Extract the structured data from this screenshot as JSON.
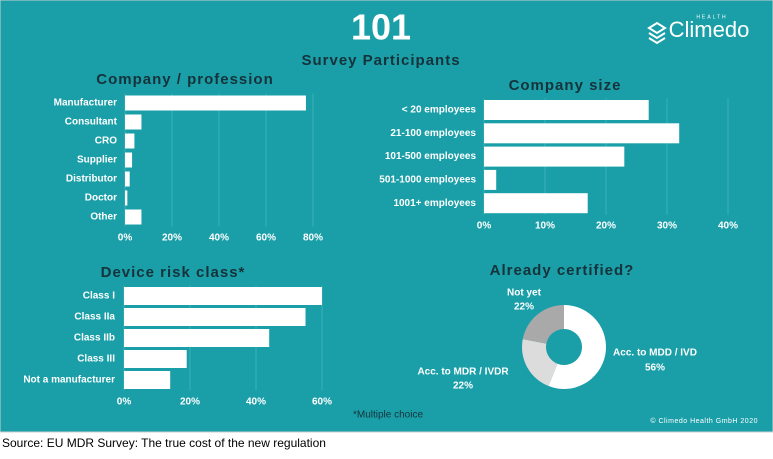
{
  "header": {
    "participants": 101,
    "subtitle": "Survey Participants"
  },
  "logo": {
    "name": "Climedo",
    "tagline": "HEALTH"
  },
  "note": "*Multiple choice",
  "copyright": "© Climedo Health GmbH 2020",
  "source": "Source: EU MDR Survey: The true cost of the new regulation",
  "chart_data": [
    {
      "type": "bar",
      "orientation": "horizontal",
      "title": "Company / profession",
      "categories": [
        "Manufacturer",
        "Consultant",
        "CRO",
        "Supplier",
        "Distributor",
        "Doctor",
        "Other"
      ],
      "values": [
        77,
        7,
        4,
        3,
        2,
        1,
        7
      ],
      "color": "#ffffff",
      "xlim": [
        0,
        80
      ],
      "xticks": [
        {
          "value": 0,
          "label": "0%"
        },
        {
          "value": 20,
          "label": "20%"
        },
        {
          "value": 40,
          "label": "40%"
        },
        {
          "value": 60,
          "label": "60%"
        },
        {
          "value": 80,
          "label": "80%"
        }
      ],
      "grid": true
    },
    {
      "type": "bar",
      "orientation": "horizontal",
      "title": "Company size",
      "categories": [
        "< 20 employees",
        "21-100 employees",
        "101-500 employees",
        "501-1000 employees",
        "1001+ employees"
      ],
      "values": [
        27,
        32,
        23,
        2,
        17
      ],
      "color": "#ffffff",
      "xlim": [
        0,
        40
      ],
      "xticks": [
        {
          "value": 0,
          "label": "0%"
        },
        {
          "value": 10,
          "label": "10%"
        },
        {
          "value": 20,
          "label": "20%"
        },
        {
          "value": 30,
          "label": "30%"
        },
        {
          "value": 40,
          "label": "40%"
        }
      ],
      "grid": true
    },
    {
      "type": "bar",
      "orientation": "horizontal",
      "title": "Device risk class*",
      "categories": [
        "Class I",
        "Class IIa",
        "Class IIb",
        "Class III",
        "Not a manufacturer"
      ],
      "values": [
        60,
        55,
        44,
        19,
        14
      ],
      "color": "#ffffff",
      "xlim": [
        0,
        60
      ],
      "xticks": [
        {
          "value": 0,
          "label": "0%"
        },
        {
          "value": 20,
          "label": "20%"
        },
        {
          "value": 40,
          "label": "40%"
        },
        {
          "value": 60,
          "label": "60%"
        }
      ],
      "grid": true
    },
    {
      "type": "donut",
      "title": "Already certified?",
      "categories": [
        "Acc. to MDD / IVD",
        "Acc. to MDR / IVDR",
        "Not yet"
      ],
      "values": [
        56,
        22,
        22
      ],
      "value_labels": [
        "56%",
        "22%",
        "22%"
      ],
      "colors": [
        "#ffffff",
        "#dcdcdc",
        "#a9a9a9"
      ]
    }
  ]
}
